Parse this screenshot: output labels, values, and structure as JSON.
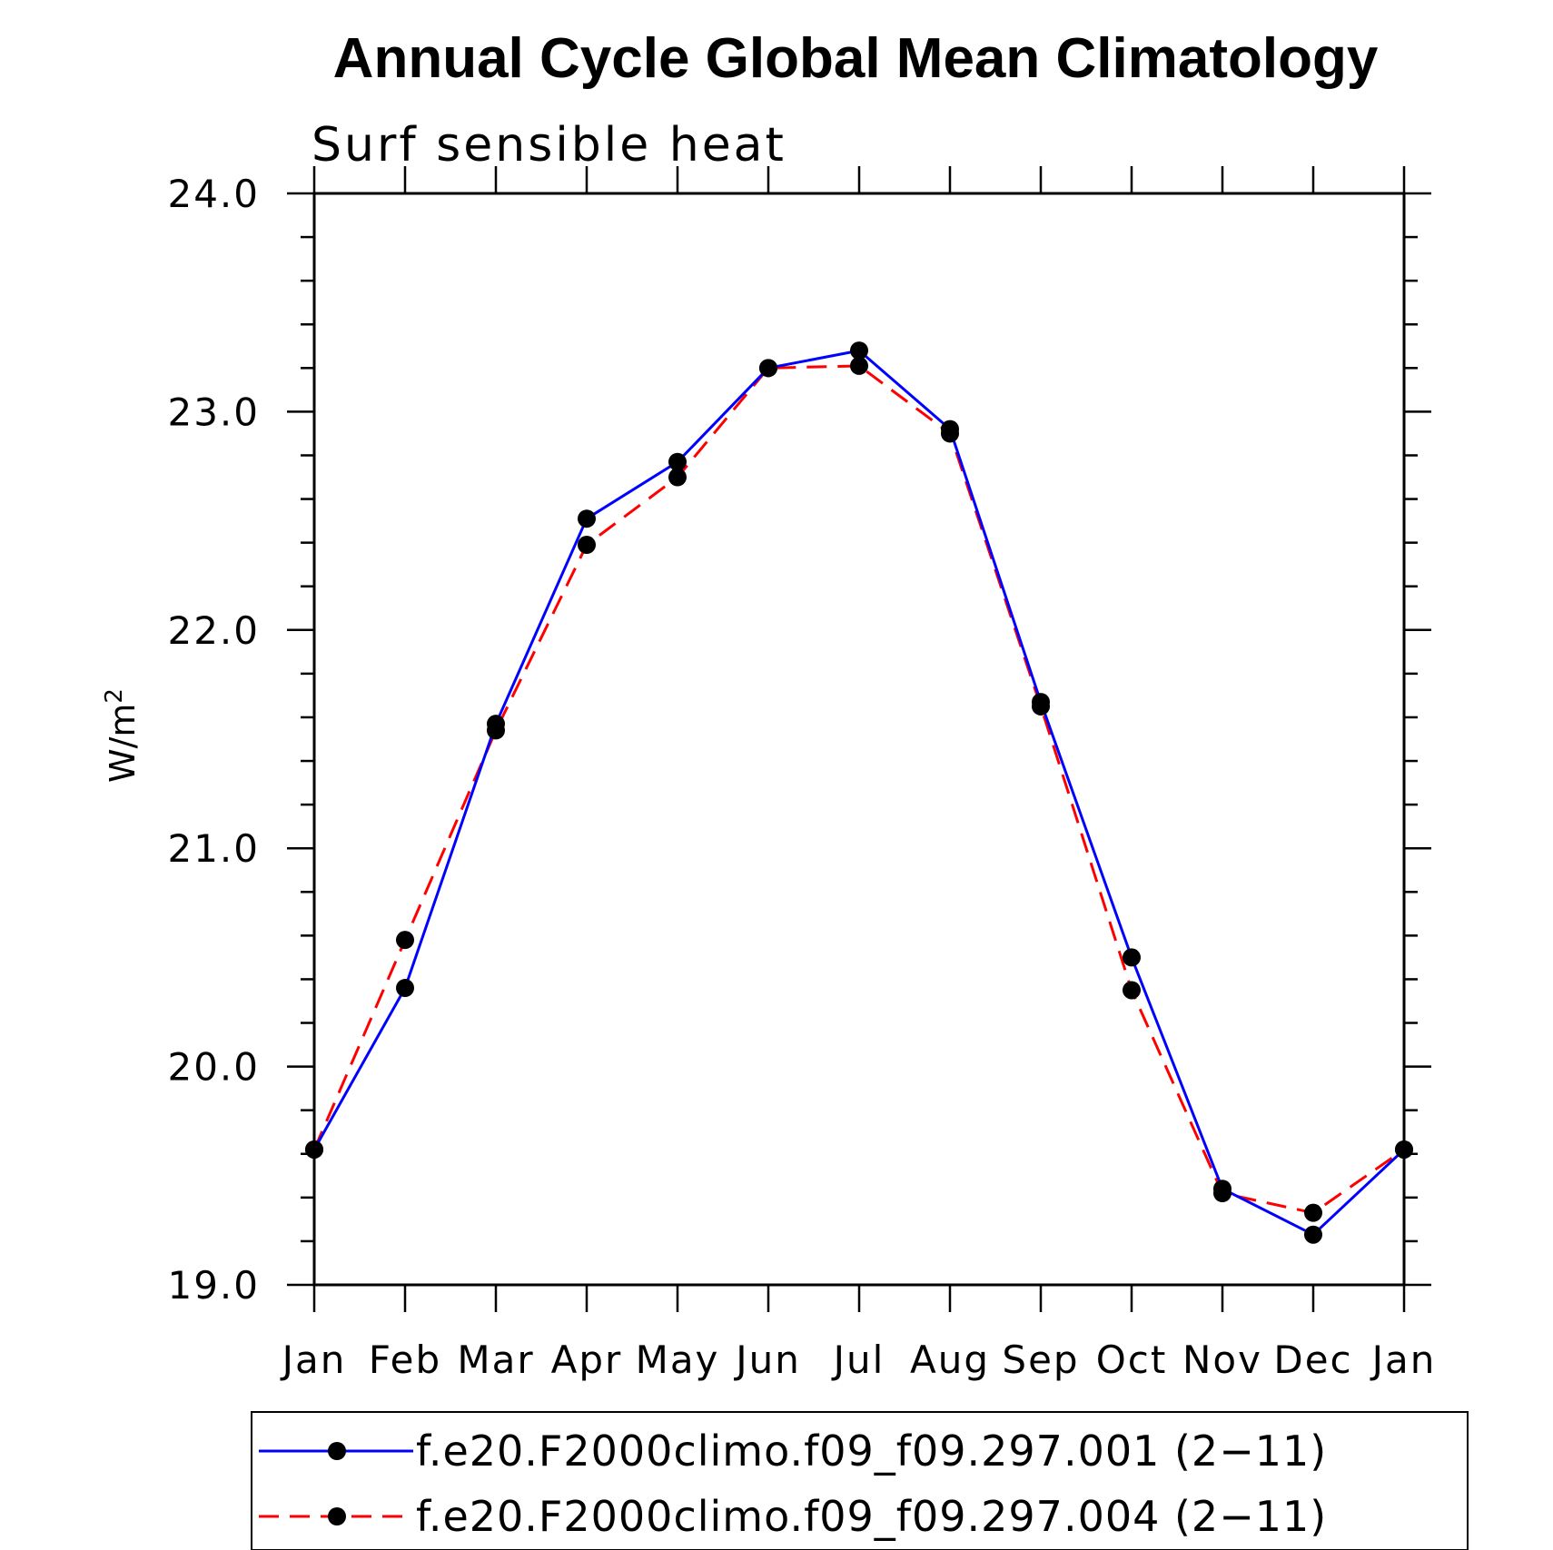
{
  "chart_data": {
    "type": "line",
    "title": "Annual Cycle Global Mean Climatology",
    "subtitle": "Surf sensible heat",
    "ylabel_base": "W/m",
    "ylabel_sup": "2",
    "xlabel": "",
    "categories": [
      "Jan",
      "Feb",
      "Mar",
      "Apr",
      "May",
      "Jun",
      "Jul",
      "Aug",
      "Sep",
      "Oct",
      "Nov",
      "Dec",
      "Jan"
    ],
    "yticks": [
      "19.0",
      "20.0",
      "21.0",
      "22.0",
      "23.0",
      "24.0"
    ],
    "ylim": [
      19.0,
      24.0
    ],
    "grid": false,
    "legend_position": "bottom",
    "series": [
      {
        "name": "f.e20.F2000climo.f09_f09.297.001 (2−11)",
        "color": "#0000ff",
        "dash": "solid",
        "marker": "filled-circle",
        "values": [
          19.62,
          20.36,
          21.57,
          22.51,
          22.77,
          23.2,
          23.28,
          22.92,
          21.67,
          20.5,
          19.44,
          19.23,
          19.62
        ]
      },
      {
        "name": "f.e20.F2000climo.f09_f09.297.004 (2−11)",
        "color": "#ff0000",
        "dash": "dashed",
        "marker": "filled-circle",
        "values": [
          19.62,
          20.58,
          21.54,
          22.39,
          22.7,
          23.2,
          23.21,
          22.9,
          21.65,
          20.35,
          19.42,
          19.33,
          19.62
        ]
      }
    ]
  }
}
